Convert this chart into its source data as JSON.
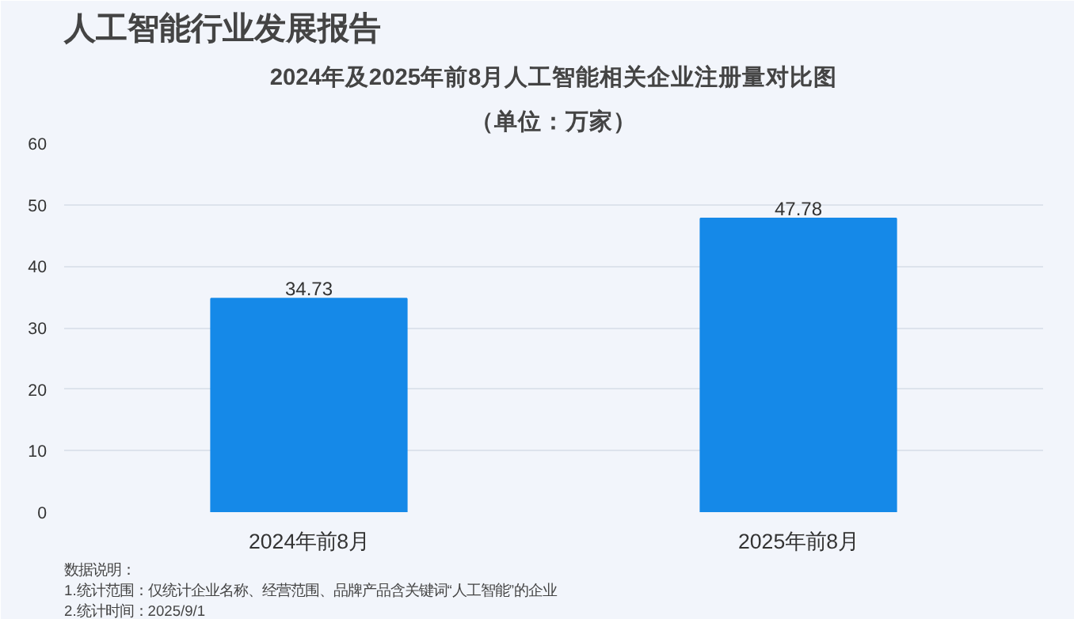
{
  "chart_data": {
    "type": "bar",
    "title": "2024年及2025年前8月人工智能相关企业注册量对比图",
    "subtitle": "（单位：万家）",
    "categories": [
      "2024年前8月",
      "2025年前8月"
    ],
    "values": [
      34.73,
      47.78
    ],
    "color": "#1589e8",
    "ylim": [
      0,
      60
    ],
    "yticks": [
      0,
      10,
      20,
      30,
      40,
      50,
      60
    ],
    "grid": "y",
    "data_labels": true,
    "annotations": [
      "人工智能行业发展报告",
      "数据说明：",
      "1.统计范围：仅统计企业名称、经营范围、品牌产品含关键词“人工智能”的企业",
      "2.统计时间：2025/9/1"
    ]
  }
}
